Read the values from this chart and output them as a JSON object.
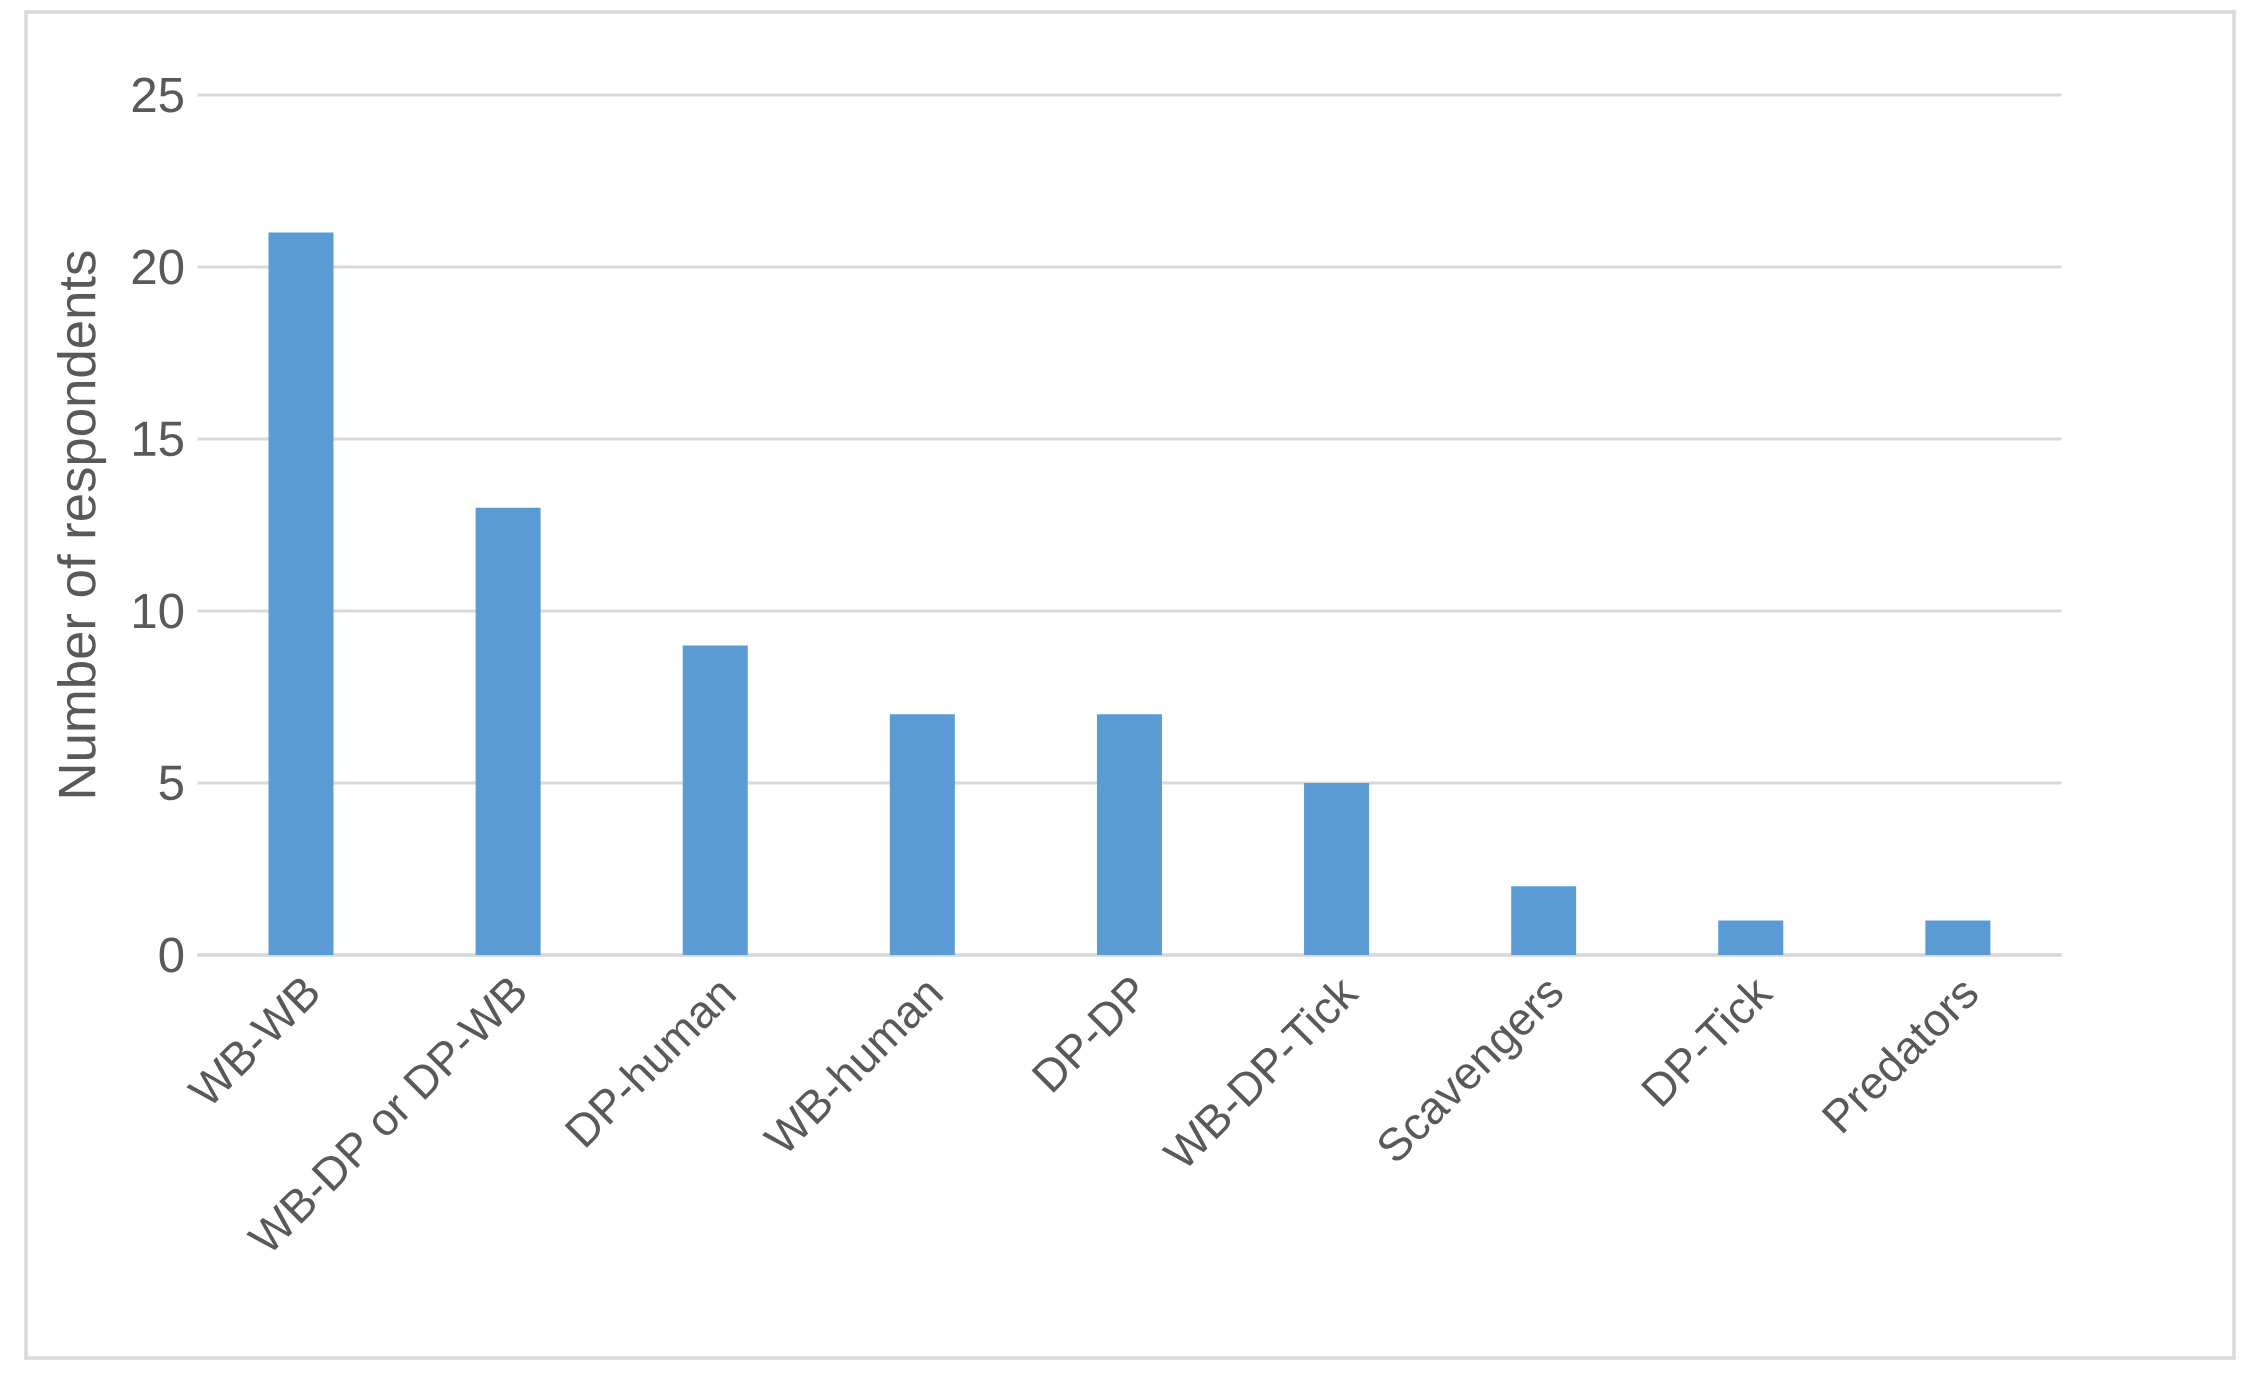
{
  "chart_data": {
    "type": "bar",
    "ylabel": "Number of respondents",
    "categories": [
      "WB-WB",
      "WB-DP or DP-WB",
      "DP-human",
      "WB-human",
      "DP-DP",
      "WB-DP-Tick",
      "Scavengers",
      "DP-Tick",
      "Predators"
    ],
    "values": [
      21,
      13,
      9,
      7,
      7,
      5,
      2,
      1,
      1
    ],
    "color": "#5b9bd5",
    "ylim": [
      0,
      25
    ],
    "yticks": [
      0,
      5,
      10,
      15,
      20,
      25
    ],
    "grid": "y"
  }
}
